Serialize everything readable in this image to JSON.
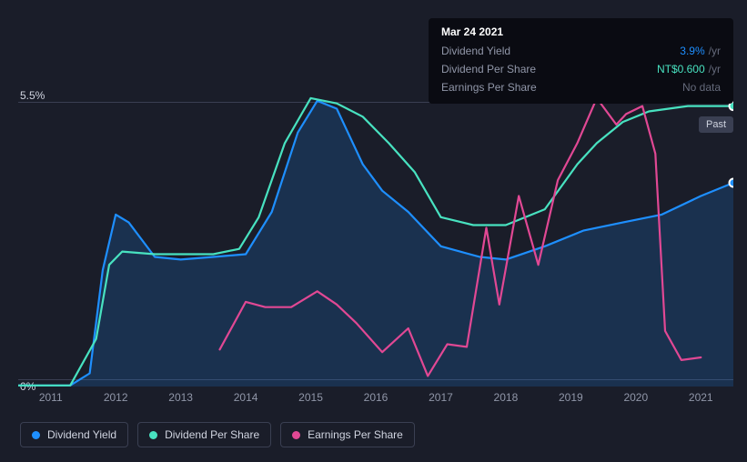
{
  "chart": {
    "type": "line",
    "background_color": "#1a1d29",
    "x_min": 2010.5,
    "x_max": 2021.5,
    "x_ticks": [
      2011,
      2012,
      2013,
      2014,
      2015,
      2016,
      2017,
      2018,
      2019,
      2020,
      2021
    ],
    "y_min": 0,
    "y_max": 5.5,
    "y_ticks": [
      {
        "value": 0,
        "label": "0%"
      },
      {
        "value": 5.5,
        "label": "5.5%"
      }
    ],
    "grid_color": "#3a3f52",
    "axis_text_color": "#9096a8",
    "series": [
      {
        "id": "dividend_yield",
        "label": "Dividend Yield",
        "color": "#1e8fff",
        "fill": true,
        "fill_color": "#1e8fff",
        "fill_opacity": 0.18,
        "data": [
          [
            2010.5,
            0.02
          ],
          [
            2011.3,
            0.02
          ],
          [
            2011.6,
            0.25
          ],
          [
            2011.8,
            2.2
          ],
          [
            2012.0,
            3.25
          ],
          [
            2012.2,
            3.1
          ],
          [
            2012.6,
            2.45
          ],
          [
            2013.0,
            2.4
          ],
          [
            2013.5,
            2.45
          ],
          [
            2014.0,
            2.5
          ],
          [
            2014.4,
            3.3
          ],
          [
            2014.8,
            4.8
          ],
          [
            2015.1,
            5.4
          ],
          [
            2015.4,
            5.25
          ],
          [
            2015.8,
            4.2
          ],
          [
            2016.1,
            3.7
          ],
          [
            2016.5,
            3.3
          ],
          [
            2017.0,
            2.65
          ],
          [
            2017.6,
            2.45
          ],
          [
            2018.0,
            2.4
          ],
          [
            2018.6,
            2.65
          ],
          [
            2019.2,
            2.95
          ],
          [
            2019.8,
            3.1
          ],
          [
            2020.4,
            3.25
          ],
          [
            2021.0,
            3.6
          ],
          [
            2021.5,
            3.85
          ]
        ]
      },
      {
        "id": "dividend_per_share",
        "label": "Dividend Per Share",
        "color": "#48e2c0",
        "fill": false,
        "data": [
          [
            2010.5,
            0.02
          ],
          [
            2011.3,
            0.02
          ],
          [
            2011.7,
            0.9
          ],
          [
            2011.9,
            2.3
          ],
          [
            2012.1,
            2.55
          ],
          [
            2012.6,
            2.5
          ],
          [
            2013.0,
            2.5
          ],
          [
            2013.5,
            2.5
          ],
          [
            2013.9,
            2.6
          ],
          [
            2014.2,
            3.2
          ],
          [
            2014.6,
            4.6
          ],
          [
            2015.0,
            5.45
          ],
          [
            2015.4,
            5.35
          ],
          [
            2015.8,
            5.1
          ],
          [
            2016.2,
            4.6
          ],
          [
            2016.6,
            4.05
          ],
          [
            2017.0,
            3.2
          ],
          [
            2017.5,
            3.05
          ],
          [
            2018.0,
            3.05
          ],
          [
            2018.6,
            3.35
          ],
          [
            2019.1,
            4.2
          ],
          [
            2019.4,
            4.6
          ],
          [
            2019.8,
            5.0
          ],
          [
            2020.2,
            5.2
          ],
          [
            2020.8,
            5.3
          ],
          [
            2021.5,
            5.3
          ]
        ]
      },
      {
        "id": "earnings_per_share",
        "label": "Earnings Per Share",
        "color": "#e14894",
        "fill": false,
        "data": [
          [
            2013.6,
            0.7
          ],
          [
            2014.0,
            1.6
          ],
          [
            2014.3,
            1.5
          ],
          [
            2014.7,
            1.5
          ],
          [
            2015.1,
            1.8
          ],
          [
            2015.4,
            1.55
          ],
          [
            2015.7,
            1.2
          ],
          [
            2016.1,
            0.65
          ],
          [
            2016.5,
            1.1
          ],
          [
            2016.8,
            0.2
          ],
          [
            2017.1,
            0.8
          ],
          [
            2017.4,
            0.75
          ],
          [
            2017.7,
            3.0
          ],
          [
            2017.9,
            1.55
          ],
          [
            2018.2,
            3.6
          ],
          [
            2018.5,
            2.3
          ],
          [
            2018.8,
            3.9
          ],
          [
            2019.1,
            4.6
          ],
          [
            2019.4,
            5.45
          ],
          [
            2019.7,
            4.95
          ],
          [
            2019.85,
            5.15
          ],
          [
            2020.1,
            5.3
          ],
          [
            2020.3,
            4.4
          ],
          [
            2020.45,
            1.05
          ],
          [
            2020.7,
            0.5
          ],
          [
            2021.0,
            0.55
          ]
        ]
      }
    ],
    "end_marker_color": "#ffffff",
    "past_label": "Past"
  },
  "tooltip": {
    "date": "Mar 24 2021",
    "rows": [
      {
        "label": "Dividend Yield",
        "value": "3.9%",
        "unit": "/yr",
        "value_color": "#1e8fff"
      },
      {
        "label": "Dividend Per Share",
        "value": "NT$0.600",
        "unit": "/yr",
        "value_color": "#48e2c0"
      },
      {
        "label": "Earnings Per Share",
        "value": "No data",
        "unit": "",
        "value_color": "#656a7b"
      }
    ]
  },
  "legend": [
    {
      "id": "dividend_yield",
      "label": "Dividend Yield",
      "color": "#1e8fff"
    },
    {
      "id": "dividend_per_share",
      "label": "Dividend Per Share",
      "color": "#48e2c0"
    },
    {
      "id": "earnings_per_share",
      "label": "Earnings Per Share",
      "color": "#e14894"
    }
  ]
}
